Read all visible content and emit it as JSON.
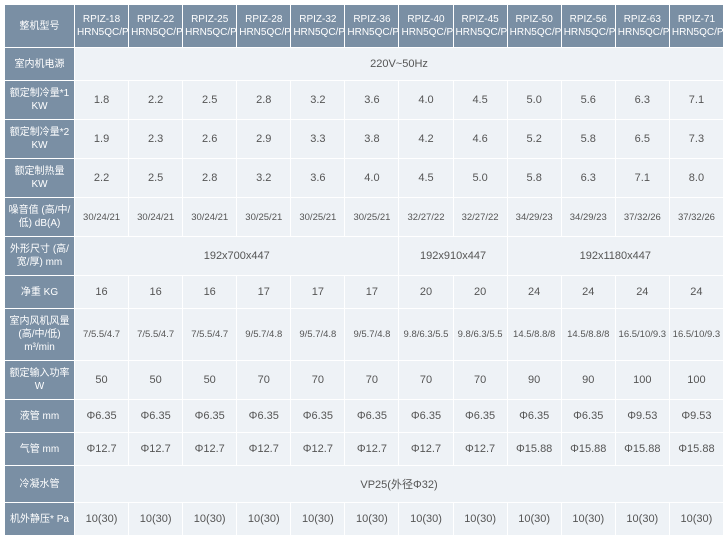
{
  "colors": {
    "header_bg": "#7a8fa4",
    "header_text": "#ffffff",
    "data_bg": "#eef2f6",
    "data_text": "#555555",
    "border": "#ffffff"
  },
  "col_headers": [
    "RPIZ-18 HRN5QC/P",
    "RPIZ-22 HRN5QC/P",
    "RPIZ-25 HRN5QC/P",
    "RPIZ-28 HRN5QC/P",
    "RPIZ-32 HRN5QC/P",
    "RPIZ-36 HRN5QC/P",
    "RPIZ-40 HRN5QC/P",
    "RPIZ-45 HRN5QC/P",
    "RPIZ-50 HRN5QC/P",
    "RPIZ-56 HRN5QC/P",
    "RPIZ-63 HRN5QC/P",
    "RPIZ-71 HRN5QC/P"
  ],
  "row_labels": {
    "model": "整机型号",
    "power": "室内机电源",
    "cool1": "额定制冷量*1 KW",
    "cool2": "额定制冷量*2 KW",
    "heat": "额定制热量 KW",
    "noise": "噪音值 (高/中/低) dB(A)",
    "dims": "外形尺寸 (高/宽/厚) mm",
    "weight": "净重 KG",
    "airflow": "室内风机风量 (高/中/低) m³/min",
    "input": "额定输入功率 W",
    "liquid": "液管 mm",
    "gas": "气管 mm",
    "drain": "冷凝水管",
    "extpress": "机外静压* Pa"
  },
  "rows": {
    "power": {
      "span": 12,
      "value": "220V~50Hz"
    },
    "cool1": [
      "1.8",
      "2.2",
      "2.5",
      "2.8",
      "3.2",
      "3.6",
      "4.0",
      "4.5",
      "5.0",
      "5.6",
      "6.3",
      "7.1"
    ],
    "cool2": [
      "1.9",
      "2.3",
      "2.6",
      "2.9",
      "3.3",
      "3.8",
      "4.2",
      "4.6",
      "5.2",
      "5.8",
      "6.5",
      "7.3"
    ],
    "heat": [
      "2.2",
      "2.5",
      "2.8",
      "3.2",
      "3.6",
      "4.0",
      "4.5",
      "5.0",
      "5.8",
      "6.3",
      "7.1",
      "8.0"
    ],
    "noise": [
      "30/24/21",
      "30/24/21",
      "30/24/21",
      "30/25/21",
      "30/25/21",
      "30/25/21",
      "32/27/22",
      "32/27/22",
      "34/29/23",
      "34/29/23",
      "37/32/26",
      "37/32/26"
    ],
    "dims": {
      "groups": [
        {
          "span": 6,
          "value": "192x700x447"
        },
        {
          "span": 2,
          "value": "192x910x447"
        },
        {
          "span": 4,
          "value": "192x1180x447"
        }
      ]
    },
    "weight": [
      "16",
      "16",
      "16",
      "17",
      "17",
      "17",
      "20",
      "20",
      "24",
      "24",
      "24",
      "24"
    ],
    "airflow": [
      "7/5.5/4.7",
      "7/5.5/4.7",
      "7/5.5/4.7",
      "9/5.7/4.8",
      "9/5.7/4.8",
      "9/5.7/4.8",
      "9.8/6.3/5.5",
      "9.8/6.3/5.5",
      "14.5/8.8/8",
      "14.5/8.8/8",
      "16.5/10/9.3",
      "16.5/10/9.3"
    ],
    "input": [
      "50",
      "50",
      "50",
      "70",
      "70",
      "70",
      "70",
      "70",
      "90",
      "90",
      "100",
      "100"
    ],
    "liquid": [
      "Φ6.35",
      "Φ6.35",
      "Φ6.35",
      "Φ6.35",
      "Φ6.35",
      "Φ6.35",
      "Φ6.35",
      "Φ6.35",
      "Φ6.35",
      "Φ6.35",
      "Φ9.53",
      "Φ9.53"
    ],
    "gas": [
      "Φ12.7",
      "Φ12.7",
      "Φ12.7",
      "Φ12.7",
      "Φ12.7",
      "Φ12.7",
      "Φ12.7",
      "Φ12.7",
      "Φ15.88",
      "Φ15.88",
      "Φ15.88",
      "Φ15.88"
    ],
    "drain": {
      "span": 12,
      "value": "VP25(外径Φ32)"
    },
    "extpress": [
      "10(30)",
      "10(30)",
      "10(30)",
      "10(30)",
      "10(30)",
      "10(30)",
      "10(30)",
      "10(30)",
      "10(30)",
      "10(30)",
      "10(30)",
      "10(30)"
    ]
  },
  "tight_rows": [
    "noise",
    "airflow"
  ]
}
